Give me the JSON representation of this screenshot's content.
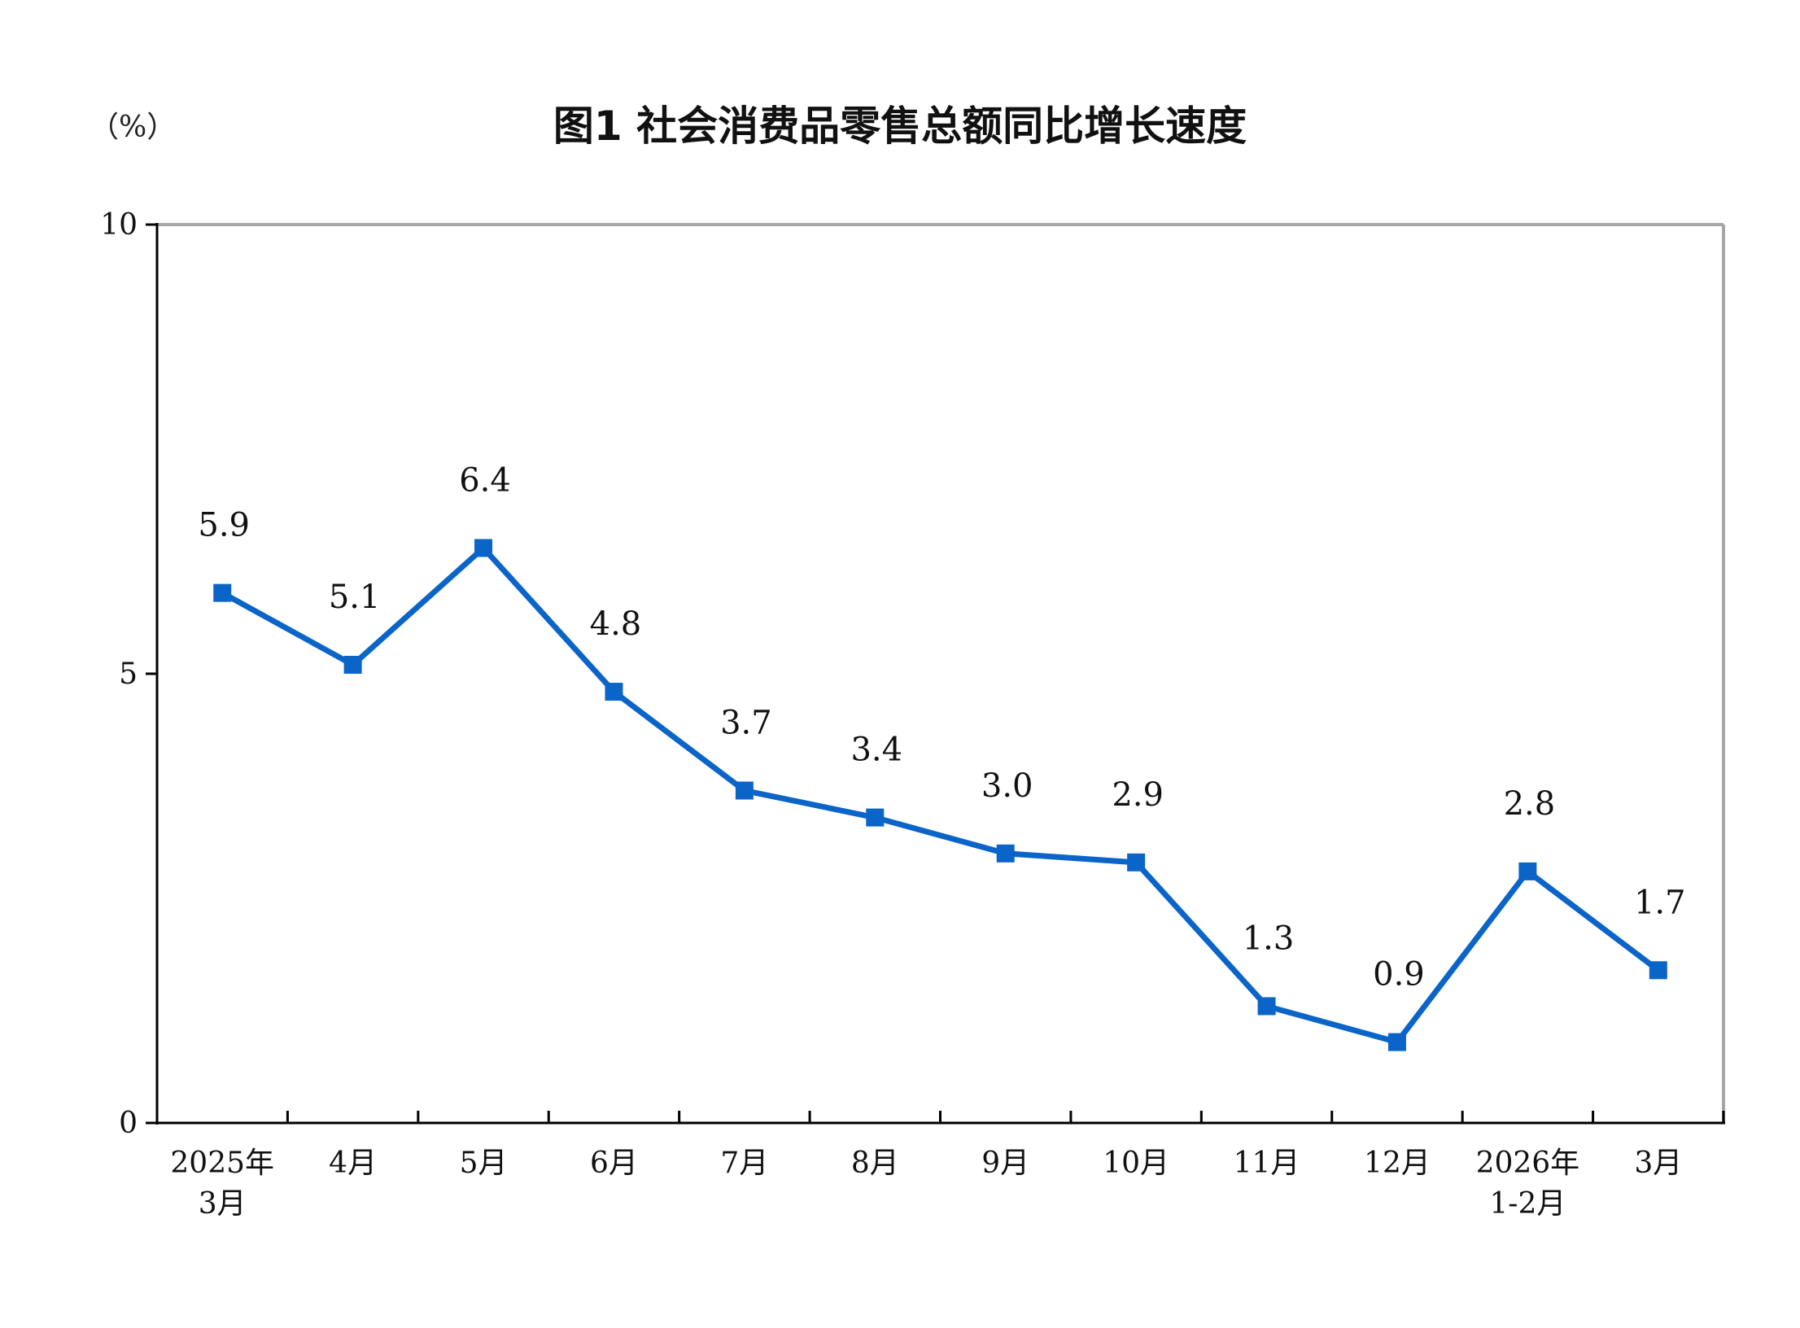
{
  "chart_data": {
    "type": "line",
    "title": "图1  社会消费品零售总额同比增长速度",
    "unit_label": "（%）",
    "categories": [
      [
        "2025年",
        "3月"
      ],
      [
        "4月"
      ],
      [
        "5月"
      ],
      [
        "6月"
      ],
      [
        "7月"
      ],
      [
        "8月"
      ],
      [
        "9月"
      ],
      [
        "10月"
      ],
      [
        "11月"
      ],
      [
        "12月"
      ],
      [
        "2026年",
        "1-2月"
      ],
      [
        "3月"
      ]
    ],
    "values": [
      5.9,
      5.1,
      6.4,
      4.8,
      3.7,
      3.4,
      3.0,
      2.9,
      1.3,
      0.9,
      2.8,
      1.7
    ],
    "data_labels": [
      "5.9",
      "5.1",
      "6.4",
      "4.8",
      "3.7",
      "3.4",
      "3.0",
      "2.9",
      "1.3",
      "0.9",
      "2.8",
      "1.7"
    ],
    "ylim": [
      0,
      10
    ],
    "yticks": [
      "0",
      "5",
      "10"
    ],
    "grid": false,
    "legend": "none",
    "line_color": "#0b64c8",
    "frame_color": "#a6a6a6",
    "axis_color": "#000000"
  }
}
